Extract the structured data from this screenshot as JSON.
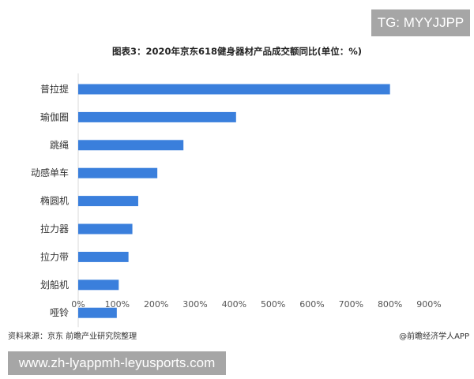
{
  "watermark_top": "TG: MYYJJPP",
  "chart_data": {
    "type": "bar",
    "orientation": "horizontal",
    "title": "图表3：2020年京东618健身器材产品成交额同比(单位：%)",
    "categories": [
      "普拉提",
      "瑜伽圈",
      "跳绳",
      "动感单车",
      "椭圆机",
      "拉力器",
      "拉力带",
      "划船机",
      "哑铃"
    ],
    "values": [
      800,
      405,
      270,
      203,
      154,
      139,
      129,
      104,
      99
    ],
    "unit": "%",
    "xlim": [
      0,
      900
    ],
    "xticks": [
      "0%",
      "100%",
      "200%",
      "300%",
      "400%",
      "500%",
      "600%",
      "700%",
      "800%",
      "900%"
    ],
    "grid": false,
    "bar_color": "#3a7fdc"
  },
  "footer": {
    "source": "资料来源：京东 前瞻产业研究院整理",
    "credit": "@前瞻经济学人APP"
  },
  "watermark_bottom": "www.zh-lyappmh-leyusports.com"
}
